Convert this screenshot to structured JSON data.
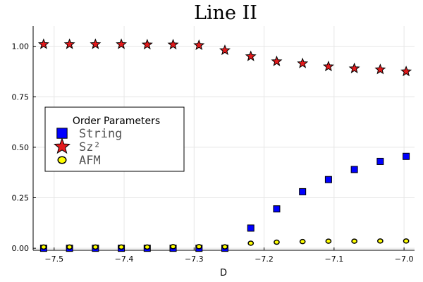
{
  "chart_data": {
    "type": "scatter",
    "title": "Line II",
    "xlabel": "D",
    "ylabel": "",
    "xlim": [
      -7.53,
      -6.985
    ],
    "ylim": [
      -0.01,
      1.1
    ],
    "xticks": [
      -7.5,
      -7.4,
      -7.3,
      -7.2,
      -7.1,
      -7.0
    ],
    "xtick_labels": [
      "−7.5",
      "−7.4",
      "−7.3",
      "−7.2",
      "−7.1",
      "−7.0"
    ],
    "yticks": [
      0.0,
      0.25,
      0.5,
      0.75,
      1.0
    ],
    "ytick_labels": [
      "0.00",
      "0.25",
      "0.50",
      "0.75",
      "1.00"
    ],
    "grid": true,
    "legend": {
      "title": "Order Parameters",
      "placement": "center-left"
    },
    "x": [
      -7.515,
      -7.478,
      -7.441,
      -7.404,
      -7.367,
      -7.33,
      -7.293,
      -7.256,
      -7.219,
      -7.182,
      -7.145,
      -7.108,
      -7.071,
      -7.034,
      -6.997
    ],
    "series": [
      {
        "name": "String",
        "marker": "square",
        "color": "#0000ff",
        "values": [
          0.0,
          0.0,
          0.0,
          0.0,
          0.0,
          0.0,
          0.0,
          0.0,
          0.1,
          0.195,
          0.28,
          0.34,
          0.39,
          0.43,
          0.455
        ]
      },
      {
        "name": "Sz²",
        "marker": "star",
        "color": "#e31a1c",
        "values": [
          1.01,
          1.01,
          1.01,
          1.01,
          1.008,
          1.008,
          1.005,
          0.98,
          0.95,
          0.925,
          0.915,
          0.9,
          0.89,
          0.885,
          0.875
        ]
      },
      {
        "name": "AFM",
        "marker": "circle",
        "color": "#ffff00",
        "values": [
          0.006,
          0.006,
          0.006,
          0.006,
          0.006,
          0.008,
          0.008,
          0.007,
          0.025,
          0.03,
          0.033,
          0.035,
          0.035,
          0.036,
          0.036
        ]
      }
    ]
  }
}
